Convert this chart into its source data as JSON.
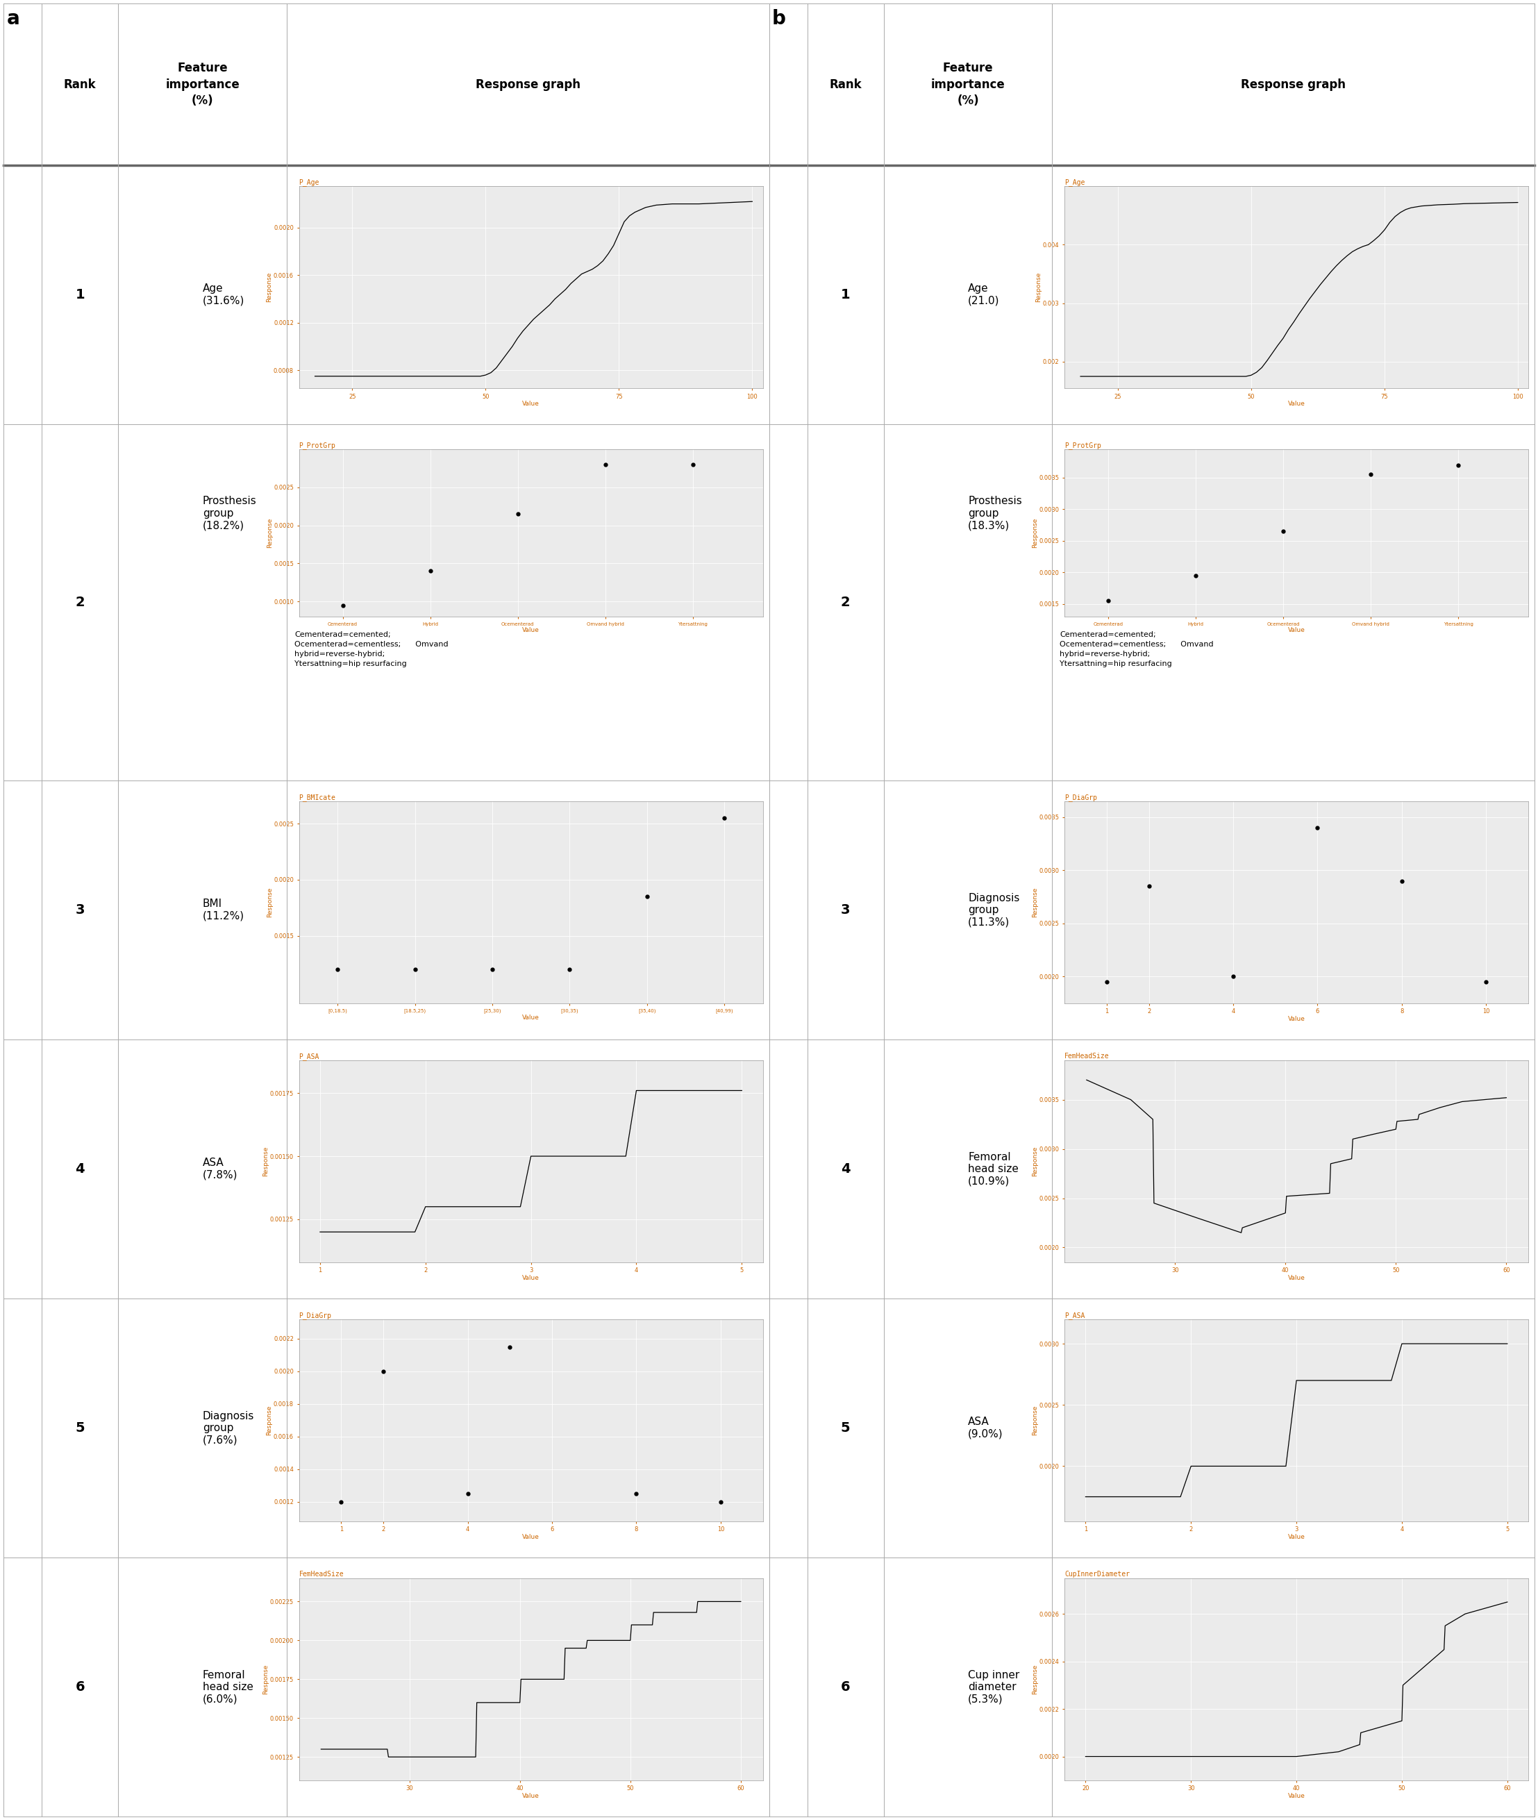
{
  "fig_width": 22.05,
  "fig_height": 26.11,
  "bg_color": "#ffffff",
  "header_sep_color": "#888888",
  "plot_bg_color": "#ebebeb",
  "plot_grid_color": "#ffffff",
  "line_color": "#000000",
  "tick_color": "#cc6600",
  "title_color": "#cc6600",
  "label_color": "#cc6600",
  "border_color": "#555555",
  "left_panel": {
    "label": "a",
    "rows": [
      {
        "rank": "1",
        "feature": "Age\n(31.6%)",
        "graph_title": "P_Age",
        "graph_type": "line",
        "x_label": "Value",
        "y_label": "Response",
        "x_data": [
          18,
          19,
          20,
          21,
          22,
          23,
          24,
          25,
          26,
          27,
          28,
          29,
          30,
          31,
          32,
          33,
          34,
          35,
          36,
          37,
          38,
          39,
          40,
          41,
          42,
          43,
          44,
          45,
          46,
          47,
          48,
          49,
          50,
          51,
          52,
          53,
          54,
          55,
          56,
          57,
          58,
          59,
          60,
          61,
          62,
          63,
          64,
          65,
          66,
          67,
          68,
          69,
          70,
          71,
          72,
          73,
          74,
          75,
          76,
          77,
          78,
          79,
          80,
          82,
          85,
          88,
          90,
          95,
          100
        ],
        "y_data": [
          0.00075,
          0.00075,
          0.00075,
          0.00075,
          0.00075,
          0.00075,
          0.00075,
          0.00075,
          0.00075,
          0.00075,
          0.00075,
          0.00075,
          0.00075,
          0.00075,
          0.00075,
          0.00075,
          0.00075,
          0.00075,
          0.00075,
          0.00075,
          0.00075,
          0.00075,
          0.00075,
          0.00075,
          0.00075,
          0.00075,
          0.00075,
          0.00075,
          0.00075,
          0.00075,
          0.00075,
          0.00075,
          0.00076,
          0.00078,
          0.00082,
          0.00088,
          0.00094,
          0.001,
          0.00107,
          0.00113,
          0.00118,
          0.00123,
          0.00127,
          0.00131,
          0.00135,
          0.0014,
          0.00144,
          0.00148,
          0.00153,
          0.00157,
          0.00161,
          0.00163,
          0.00165,
          0.00168,
          0.00172,
          0.00178,
          0.00185,
          0.00195,
          0.00205,
          0.0021,
          0.00213,
          0.00215,
          0.00217,
          0.00219,
          0.0022,
          0.0022,
          0.0022,
          0.00221,
          0.00222
        ],
        "x_ticks": [
          25,
          50,
          75,
          100
        ],
        "y_ticks": [
          0.0008,
          0.0012,
          0.0016,
          0.002
        ],
        "y_tick_labels": [
          "0.0008",
          "0.0012",
          "0.0016",
          "0.0020"
        ],
        "xlim": [
          15,
          102
        ],
        "ylim": [
          0.00065,
          0.00235
        ]
      },
      {
        "rank": "2",
        "feature": "Prosthesis\ngroup\n(18.2%)",
        "graph_title": "P_ProtGrp",
        "graph_type": "scatter",
        "x_label": "Value",
        "y_label": "Response",
        "x_data": [
          0,
          1,
          2,
          3,
          4
        ],
        "y_data": [
          0.00095,
          0.0014,
          0.00215,
          0.0028,
          0.0028
        ],
        "x_tick_labels": [
          "Cementerad",
          "Hybrid",
          "Ocementerad",
          "Omvand hybrid",
          "Ytersattning"
        ],
        "y_ticks": [
          0.001,
          0.0015,
          0.002,
          0.0025
        ],
        "y_tick_labels": [
          "0.0010",
          "0.0015",
          "0.0020",
          "0.0025"
        ],
        "xlim": [
          -0.5,
          4.8
        ],
        "ylim": [
          0.0008,
          0.003
        ],
        "note": "Cementerad=cemented;\nOcementerad=cementless;      Omvand\nhybrid=reverse-hybrid;\nYtersattning=hip resurfacing"
      },
      {
        "rank": "3",
        "feature": "BMI\n(11.2%)",
        "graph_title": "P_BMIcate",
        "graph_type": "scatter",
        "x_label": "Value",
        "y_label": "Response",
        "x_data": [
          0,
          1,
          2,
          3,
          4,
          5
        ],
        "y_data": [
          0.0012,
          0.0012,
          0.0012,
          0.0012,
          0.00185,
          0.00255
        ],
        "x_tick_labels": [
          "[0,18.5)",
          "[18.5,25)",
          "[25,30)",
          "[30,35)",
          "[35,40)",
          "[40,99)"
        ],
        "y_ticks": [
          0.0015,
          0.002,
          0.0025
        ],
        "y_tick_labels": [
          "0.0015",
          "0.0020",
          "0.0025"
        ],
        "xlim": [
          -0.5,
          5.5
        ],
        "ylim": [
          0.0009,
          0.0027
        ]
      },
      {
        "rank": "4",
        "feature": "ASA\n(7.8%)",
        "graph_title": "P_ASA",
        "graph_type": "line",
        "x_label": "Value",
        "y_label": "Response",
        "x_data": [
          1.0,
          1.5,
          1.9,
          2.0,
          2.1,
          2.9,
          3.0,
          3.1,
          3.9,
          4.0,
          4.1,
          5.0
        ],
        "y_data": [
          0.0012,
          0.0012,
          0.0012,
          0.0013,
          0.0013,
          0.0013,
          0.0015,
          0.0015,
          0.0015,
          0.00176,
          0.00176,
          0.00176
        ],
        "x_ticks": [
          1,
          2,
          3,
          4,
          5
        ],
        "y_ticks": [
          0.00125,
          0.0015,
          0.00175
        ],
        "y_tick_labels": [
          "0.00125",
          "0.00150",
          "0.00175"
        ],
        "xlim": [
          0.8,
          5.2
        ],
        "ylim": [
          0.00108,
          0.00188
        ]
      },
      {
        "rank": "5",
        "feature": "Diagnosis\ngroup\n(7.6%)",
        "graph_title": "P_DiaGrp",
        "graph_type": "scatter",
        "x_label": "Value",
        "y_label": "Response",
        "x_data": [
          1,
          2,
          4,
          5,
          8,
          10
        ],
        "y_data": [
          0.0012,
          0.002,
          0.00125,
          0.00215,
          0.00125,
          0.0012
        ],
        "x_ticks": [
          1,
          2,
          4,
          6,
          8,
          10
        ],
        "y_ticks": [
          0.0012,
          0.0014,
          0.0016,
          0.0018,
          0.002,
          0.0022
        ],
        "y_tick_labels": [
          "0.0012",
          "0.0014",
          "0.0016",
          "0.0018",
          "0.0020",
          "0.0022"
        ],
        "xlim": [
          0,
          11
        ],
        "ylim": [
          0.00108,
          0.00232
        ]
      },
      {
        "rank": "6",
        "feature": "Femoral\nhead size\n(6.0%)",
        "graph_title": "FemHeadSize",
        "graph_type": "line",
        "x_label": "Value",
        "y_label": "Response",
        "x_data": [
          22,
          26,
          28,
          28.1,
          36,
          36.1,
          40,
          40.1,
          44,
          44.1,
          46,
          46.1,
          50,
          50.1,
          52,
          52.1,
          56,
          56.1,
          60
        ],
        "y_data": [
          0.0013,
          0.0013,
          0.0013,
          0.00125,
          0.00125,
          0.0016,
          0.0016,
          0.00175,
          0.00175,
          0.00195,
          0.00195,
          0.002,
          0.002,
          0.0021,
          0.0021,
          0.00218,
          0.00218,
          0.00225,
          0.00225
        ],
        "x_ticks": [
          30,
          40,
          50,
          60
        ],
        "y_ticks": [
          0.00125,
          0.0015,
          0.00175,
          0.002,
          0.00225
        ],
        "y_tick_labels": [
          "0.00125",
          "0.00150",
          "0.00175",
          "0.00200",
          "0.00225"
        ],
        "xlim": [
          20,
          62
        ],
        "ylim": [
          0.0011,
          0.0024
        ]
      }
    ]
  },
  "right_panel": {
    "label": "b",
    "rows": [
      {
        "rank": "1",
        "feature": "Age\n(21.0)",
        "graph_title": "P_Age",
        "graph_type": "line",
        "x_label": "Value",
        "y_label": "Response",
        "x_data": [
          18,
          19,
          20,
          21,
          22,
          23,
          24,
          25,
          26,
          27,
          28,
          29,
          30,
          31,
          32,
          33,
          34,
          35,
          36,
          37,
          38,
          39,
          40,
          41,
          42,
          43,
          44,
          45,
          46,
          47,
          48,
          49,
          50,
          51,
          52,
          53,
          54,
          55,
          56,
          57,
          58,
          59,
          60,
          61,
          62,
          63,
          64,
          65,
          66,
          67,
          68,
          69,
          70,
          71,
          72,
          73,
          74,
          75,
          76,
          77,
          78,
          79,
          80,
          82,
          85,
          88,
          90,
          95,
          100
        ],
        "y_data": [
          0.00175,
          0.00175,
          0.00175,
          0.00175,
          0.00175,
          0.00175,
          0.00175,
          0.00175,
          0.00175,
          0.00175,
          0.00175,
          0.00175,
          0.00175,
          0.00175,
          0.00175,
          0.00175,
          0.00175,
          0.00175,
          0.00175,
          0.00175,
          0.00175,
          0.00175,
          0.00175,
          0.00175,
          0.00175,
          0.00175,
          0.00175,
          0.00175,
          0.00175,
          0.00175,
          0.00175,
          0.00175,
          0.00177,
          0.00182,
          0.0019,
          0.00202,
          0.00215,
          0.00228,
          0.0024,
          0.00255,
          0.00268,
          0.00282,
          0.00295,
          0.00308,
          0.0032,
          0.00332,
          0.00343,
          0.00354,
          0.00364,
          0.00373,
          0.00381,
          0.00388,
          0.00393,
          0.00397,
          0.004,
          0.00407,
          0.00415,
          0.00425,
          0.00438,
          0.00448,
          0.00455,
          0.0046,
          0.00463,
          0.00466,
          0.00468,
          0.00469,
          0.0047,
          0.00471,
          0.00472
        ],
        "x_ticks": [
          25,
          50,
          75,
          100
        ],
        "y_ticks": [
          0.002,
          0.003,
          0.004
        ],
        "y_tick_labels": [
          "0.002",
          "0.003",
          "0.004"
        ],
        "xlim": [
          15,
          102
        ],
        "ylim": [
          0.00155,
          0.005
        ]
      },
      {
        "rank": "2",
        "feature": "Prosthesis\ngroup\n(18.3%)",
        "graph_title": "P_ProtGrp",
        "graph_type": "scatter",
        "x_label": "Value",
        "y_label": "Response",
        "x_data": [
          0,
          1,
          2,
          3,
          4
        ],
        "y_data": [
          0.00155,
          0.00195,
          0.00265,
          0.00355,
          0.0037
        ],
        "x_tick_labels": [
          "Cementerad",
          "Hybrid",
          "Ocementerad",
          "Omvand hybrid",
          "Ytersattning"
        ],
        "y_ticks": [
          0.0015,
          0.002,
          0.0025,
          0.003,
          0.0035
        ],
        "y_tick_labels": [
          "0.0015",
          "0.0020",
          "0.0025",
          "0.0030",
          "0.0035"
        ],
        "xlim": [
          -0.5,
          4.8
        ],
        "ylim": [
          0.0013,
          0.00395
        ],
        "note": "Cementerad=cemented;\nOcementerad=cementless;      Omvand\nhybrid=reverse-hybrid;\nYtersattning=hip resurfacing"
      },
      {
        "rank": "3",
        "feature": "Diagnosis\ngroup\n(11.3%)",
        "graph_title": "P_DiaGrp",
        "graph_type": "scatter",
        "x_label": "Value",
        "y_label": "Response",
        "x_data": [
          1,
          2,
          4,
          6,
          8,
          10
        ],
        "y_data": [
          0.00195,
          0.00285,
          0.002,
          0.0034,
          0.0029,
          0.00195
        ],
        "x_ticks": [
          1,
          2,
          4,
          6,
          8,
          10
        ],
        "y_ticks": [
          0.002,
          0.0025,
          0.003,
          0.0035
        ],
        "y_tick_labels": [
          "0.0020",
          "0.0025",
          "0.0030",
          "0.0035"
        ],
        "xlim": [
          0,
          11
        ],
        "ylim": [
          0.00175,
          0.00365
        ]
      },
      {
        "rank": "4",
        "feature": "Femoral\nhead size\n(10.9%)",
        "graph_title": "FemHeadSize",
        "graph_type": "line",
        "x_label": "Value",
        "y_label": "Response",
        "x_data": [
          22,
          24,
          26,
          28,
          28.1,
          32,
          36,
          36.1,
          40,
          40.1,
          44,
          44.1,
          46,
          46.1,
          48,
          50,
          50.1,
          52,
          52.1,
          54,
          56,
          58,
          60
        ],
        "y_data": [
          0.0037,
          0.0036,
          0.0035,
          0.0033,
          0.00245,
          0.0023,
          0.00215,
          0.0022,
          0.00235,
          0.00252,
          0.00255,
          0.00285,
          0.0029,
          0.0031,
          0.00315,
          0.0032,
          0.00328,
          0.0033,
          0.00335,
          0.00342,
          0.00348,
          0.0035,
          0.00352
        ],
        "x_ticks": [
          30,
          40,
          50,
          60
        ],
        "y_ticks": [
          0.002,
          0.0025,
          0.003,
          0.0035
        ],
        "y_tick_labels": [
          "0.0020",
          "0.0025",
          "0.0030",
          "0.0035"
        ],
        "xlim": [
          20,
          62
        ],
        "ylim": [
          0.00185,
          0.0039
        ]
      },
      {
        "rank": "5",
        "feature": "ASA\n(9.0%)",
        "graph_title": "P_ASA",
        "graph_type": "line",
        "x_label": "Value",
        "y_label": "Response",
        "x_data": [
          1.0,
          1.5,
          1.9,
          2.0,
          2.1,
          2.9,
          3.0,
          3.1,
          3.9,
          4.0,
          4.1,
          5.0
        ],
        "y_data": [
          0.00175,
          0.00175,
          0.00175,
          0.002,
          0.002,
          0.002,
          0.0027,
          0.0027,
          0.0027,
          0.003,
          0.003,
          0.003
        ],
        "x_ticks": [
          1,
          2,
          3,
          4,
          5
        ],
        "y_ticks": [
          0.002,
          0.0025,
          0.003
        ],
        "y_tick_labels": [
          "0.0020",
          "0.0025",
          "0.0030"
        ],
        "xlim": [
          0.8,
          5.2
        ],
        "ylim": [
          0.00155,
          0.0032
        ]
      },
      {
        "rank": "6",
        "feature": "Cup inner\ndiameter\n(5.3%)",
        "graph_title": "CupInnerDiameter",
        "graph_type": "line",
        "x_label": "Value",
        "y_label": "Response",
        "x_data": [
          20,
          22,
          26,
          30,
          36,
          40,
          44,
          46,
          46.1,
          50,
          50.1,
          54,
          54.1,
          56,
          60
        ],
        "y_data": [
          0.002,
          0.002,
          0.002,
          0.002,
          0.002,
          0.002,
          0.00202,
          0.00205,
          0.0021,
          0.00215,
          0.0023,
          0.00245,
          0.00255,
          0.0026,
          0.00265
        ],
        "x_ticks": [
          20,
          30,
          40,
          50,
          60
        ],
        "y_ticks": [
          0.002,
          0.0022,
          0.0024,
          0.0026
        ],
        "y_tick_labels": [
          "0.0020",
          "0.0022",
          "0.0024",
          "0.0026"
        ],
        "xlim": [
          18,
          62
        ],
        "ylim": [
          0.0019,
          0.00275
        ]
      }
    ]
  }
}
